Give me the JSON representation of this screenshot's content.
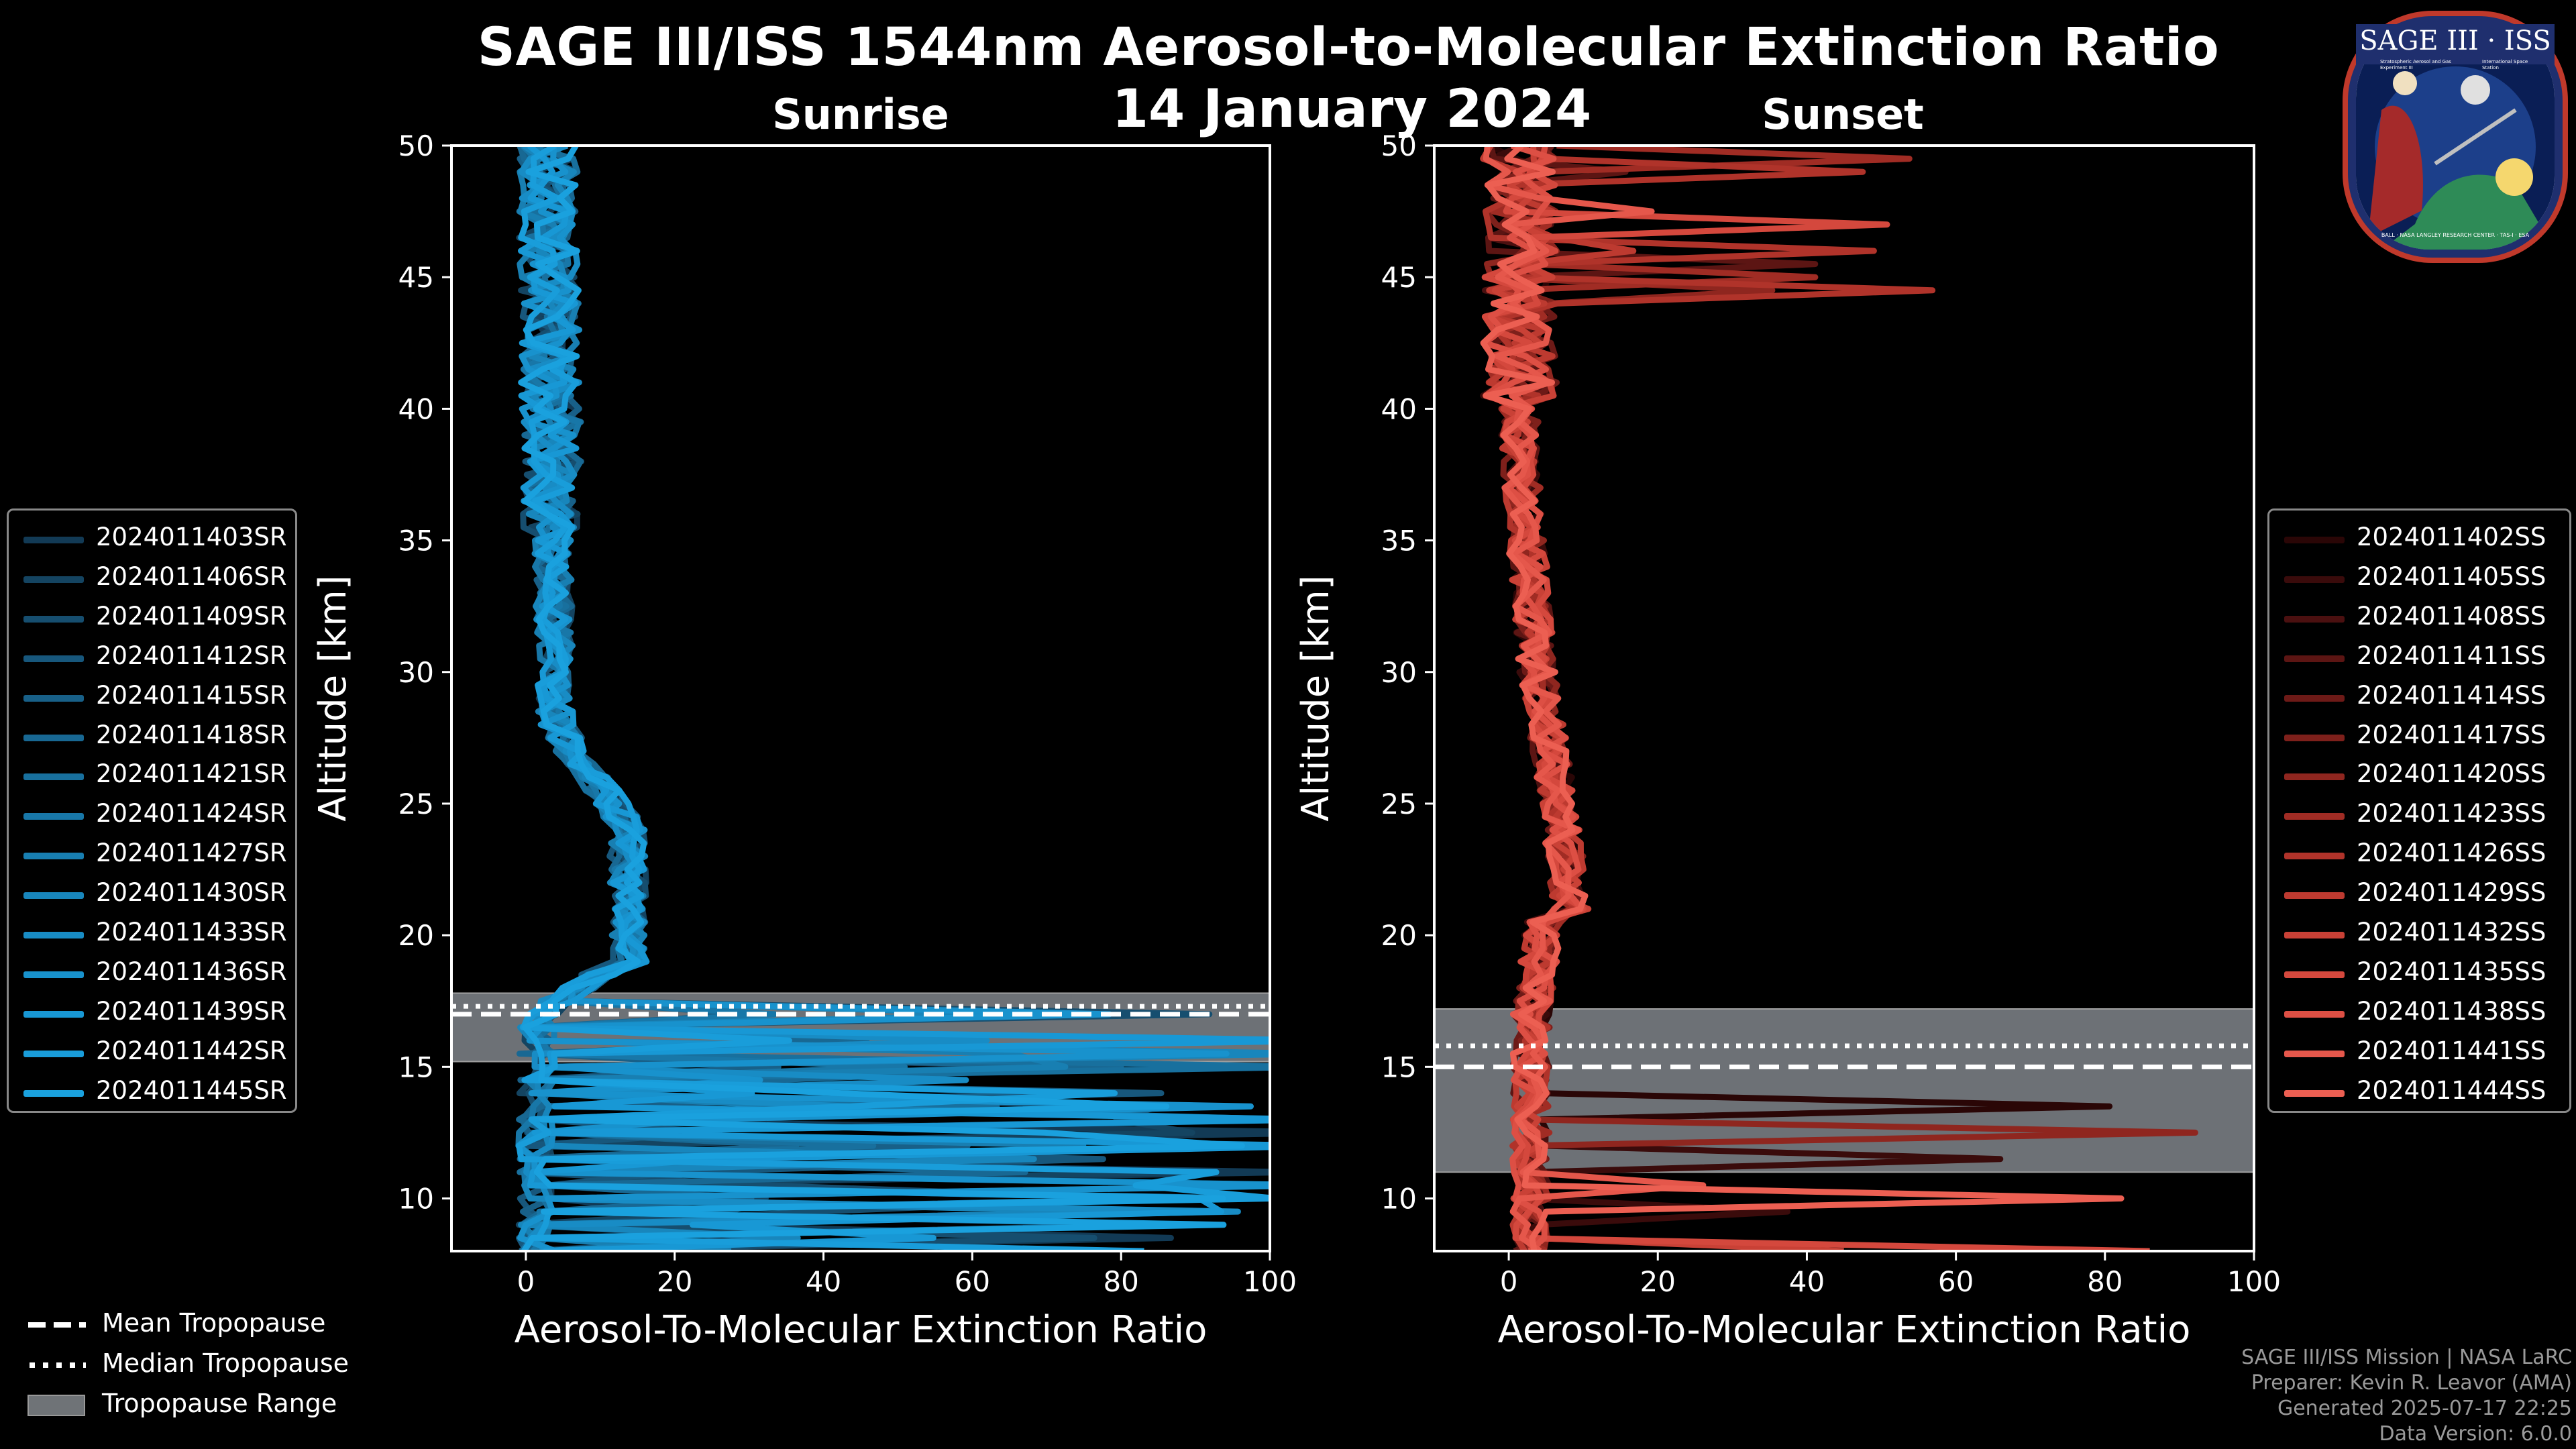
{
  "header": {
    "title": "SAGE III/ISS 1544nm Aerosol-to-Molecular Extinction Ratio",
    "date": "14 January 2024"
  },
  "logo": {
    "name": "SAGE III · ISS",
    "small_left": "Stratospheric Aerosol and Gas Experiment III",
    "small_right": "International Space Station",
    "ring_text": "BALL · NASA LANGLEY RESEARCH CENTER · TAS-I · ESA"
  },
  "chart_data": [
    {
      "type": "line",
      "title": "Sunrise",
      "xlabel": "Aerosol-To-Molecular Extinction Ratio",
      "ylabel": "Altitude [km]",
      "xlim": [
        -10,
        100
      ],
      "ylim": [
        8,
        50
      ],
      "xticks": [
        "0",
        "20",
        "40",
        "60",
        "80",
        "100"
      ],
      "yticks": [
        "10",
        "15",
        "20",
        "25",
        "30",
        "35",
        "40",
        "45",
        "50"
      ],
      "tropopause": {
        "mean": 17.0,
        "median": 17.3,
        "range": [
          15.2,
          17.8
        ]
      },
      "series": [
        {
          "name": "2024011403SR",
          "color": "#123a55"
        },
        {
          "name": "2024011406SR",
          "color": "#144461"
        },
        {
          "name": "2024011409SR",
          "color": "#164e6f"
        },
        {
          "name": "2024011412SR",
          "color": "#17577c"
        },
        {
          "name": "2024011415SR",
          "color": "#186088"
        },
        {
          "name": "2024011418SR",
          "color": "#186893"
        },
        {
          "name": "2024011421SR",
          "color": "#18709e"
        },
        {
          "name": "2024011424SR",
          "color": "#1877a8"
        },
        {
          "name": "2024011427SR",
          "color": "#187fb2"
        },
        {
          "name": "2024011430SR",
          "color": "#1886bc"
        },
        {
          "name": "2024011433SR",
          "color": "#188cc5"
        },
        {
          "name": "2024011436SR",
          "color": "#1892cd"
        },
        {
          "name": "2024011439SR",
          "color": "#1898d5"
        },
        {
          "name": "2024011442SR",
          "color": "#199dda"
        },
        {
          "name": "2024011445SR",
          "color": "#1aa1de"
        }
      ]
    },
    {
      "type": "line",
      "title": "Sunset",
      "xlabel": "Aerosol-To-Molecular Extinction Ratio",
      "ylabel": "Altitude [km]",
      "xlim": [
        -10,
        100
      ],
      "ylim": [
        8,
        50
      ],
      "xticks": [
        "0",
        "20",
        "40",
        "60",
        "80",
        "100"
      ],
      "yticks": [
        "10",
        "15",
        "20",
        "25",
        "30",
        "35",
        "40",
        "45",
        "50"
      ],
      "tropopause": {
        "mean": 15.0,
        "median": 15.8,
        "range": [
          11.0,
          17.2
        ]
      },
      "series": [
        {
          "name": "2024011402SS",
          "color": "#2a0606"
        },
        {
          "name": "2024011405SS",
          "color": "#3a0b0b"
        },
        {
          "name": "2024011408SS",
          "color": "#4b1010"
        },
        {
          "name": "2024011411SS",
          "color": "#5c1513"
        },
        {
          "name": "2024011414SS",
          "color": "#6d1a17"
        },
        {
          "name": "2024011417SS",
          "color": "#7e201b"
        },
        {
          "name": "2024011420SS",
          "color": "#8f261f"
        },
        {
          "name": "2024011423SS",
          "color": "#a02c24"
        },
        {
          "name": "2024011426SS",
          "color": "#b0332a"
        },
        {
          "name": "2024011429SS",
          "color": "#bd3a30"
        },
        {
          "name": "2024011432SS",
          "color": "#c94136"
        },
        {
          "name": "2024011435SS",
          "color": "#d4483d"
        },
        {
          "name": "2024011438SS",
          "color": "#dd4f44"
        },
        {
          "name": "2024011441SS",
          "color": "#e5574b"
        },
        {
          "name": "2024011444SS",
          "color": "#ec5f52"
        }
      ]
    }
  ],
  "bottom_legend": {
    "mean": "Mean Tropopause",
    "median": "Median Tropopause",
    "range": "Tropopause Range"
  },
  "footer": {
    "line1": "SAGE III/ISS Mission | NASA LaRC",
    "line2": "Preparer: Kevin R. Leavor (AMA)",
    "line3": "Generated 2025-07-17 22:25",
    "line4": "Data Version: 6.0.0"
  }
}
